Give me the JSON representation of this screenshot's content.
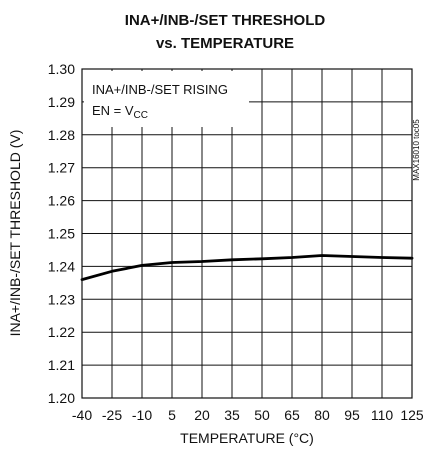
{
  "chart_data": {
    "type": "line",
    "title": "INA+/INB-/SET THRESHOLD",
    "subtitle": "vs. TEMPERATURE",
    "xlabel": "TEMPERATURE (°C)",
    "ylabel": "INA+/INB-/SET THRESHOLD (V)",
    "xlim": [
      -40,
      125
    ],
    "ylim": [
      1.2,
      1.3
    ],
    "x_ticks": [
      "-40",
      "-25",
      "-10",
      "5",
      "20",
      "35",
      "50",
      "65",
      "80",
      "95",
      "110",
      "125"
    ],
    "y_ticks": [
      "1.20",
      "1.21",
      "1.22",
      "1.23",
      "1.24",
      "1.25",
      "1.26",
      "1.27",
      "1.28",
      "1.29",
      "1.30"
    ],
    "grid": true,
    "annotation": {
      "line1": "INA+/INB-/SET RISING",
      "line2_prefix": "EN = V",
      "line2_subscript": "CC"
    },
    "side_label": "MAX16010 toc05",
    "series": [
      {
        "x": [
          -40,
          -25,
          -10,
          5,
          20,
          35,
          50,
          65,
          80,
          95,
          110,
          125
        ],
        "y": [
          1.236,
          1.2385,
          1.2403,
          1.2412,
          1.2415,
          1.242,
          1.2423,
          1.2427,
          1.2433,
          1.243,
          1.2427,
          1.2425
        ]
      }
    ]
  }
}
